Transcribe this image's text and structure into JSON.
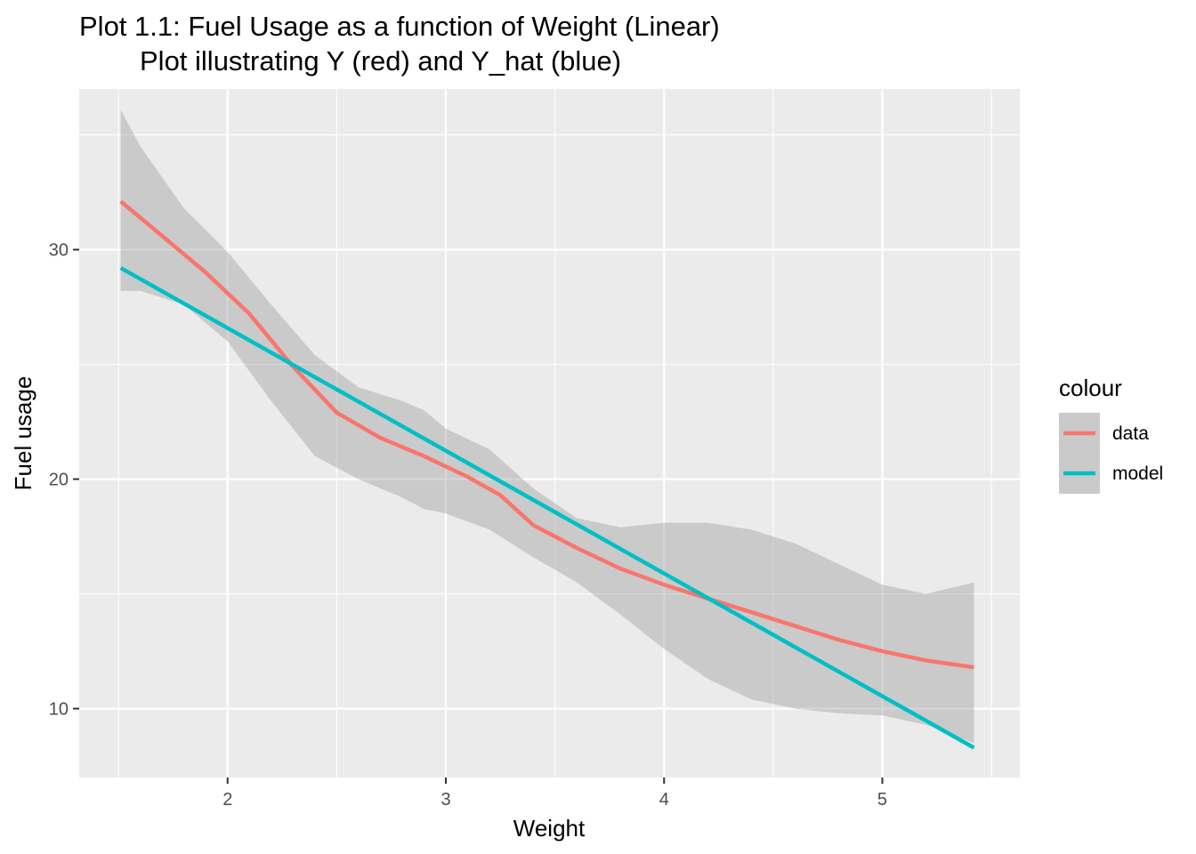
{
  "chart_data": {
    "type": "line",
    "title": "Plot 1.1: Fuel Usage as a function of Weight (Linear)",
    "subtitle": "Plot illustrating Y (red) and Y_hat (blue)",
    "xlabel": "Weight",
    "ylabel": "Fuel usage",
    "xlim": [
      1.32,
      5.63
    ],
    "ylim": [
      7.0,
      37.0
    ],
    "x_ticks": [
      2,
      3,
      4,
      5
    ],
    "y_ticks": [
      10,
      20,
      30
    ],
    "grid": true,
    "legend": {
      "title": "colour",
      "placement": "right",
      "entries": [
        {
          "label": "data",
          "color": "#F8766D"
        },
        {
          "label": "model",
          "color": "#00BFC4"
        }
      ]
    },
    "series": [
      {
        "name": "data",
        "color": "#F8766D",
        "x": [
          1.51,
          1.7,
          1.9,
          2.1,
          2.3,
          2.5,
          2.7,
          2.9,
          3.1,
          3.25,
          3.4,
          3.6,
          3.8,
          4.0,
          4.2,
          4.4,
          4.6,
          4.8,
          5.0,
          5.2,
          5.42
        ],
        "y": [
          32.1,
          30.6,
          29.0,
          27.2,
          24.9,
          22.9,
          21.8,
          21.0,
          20.1,
          19.3,
          18.0,
          17.0,
          16.1,
          15.4,
          14.8,
          14.2,
          13.6,
          13.0,
          12.5,
          12.1,
          11.8
        ]
      },
      {
        "name": "model",
        "color": "#00BFC4",
        "x": [
          1.51,
          5.42
        ],
        "y": [
          29.2,
          8.3
        ]
      }
    ],
    "confidence_band": {
      "color": "#999999",
      "x": [
        1.51,
        1.6,
        1.8,
        2.0,
        2.2,
        2.4,
        2.6,
        2.8,
        2.9,
        3.0,
        3.2,
        3.4,
        3.6,
        3.8,
        4.0,
        4.2,
        4.4,
        4.6,
        4.8,
        5.0,
        5.2,
        5.42
      ],
      "upper": [
        36.1,
        34.5,
        31.8,
        29.9,
        27.6,
        25.4,
        24.0,
        23.4,
        23.0,
        22.2,
        21.3,
        19.6,
        18.3,
        17.9,
        18.1,
        18.1,
        17.8,
        17.2,
        16.3,
        15.4,
        15.0,
        15.5
      ],
      "lower": [
        28.2,
        28.2,
        27.6,
        26.0,
        23.4,
        21.0,
        20.0,
        19.2,
        18.7,
        18.5,
        17.8,
        16.6,
        15.5,
        14.1,
        12.6,
        11.3,
        10.4,
        10.0,
        9.8,
        9.7,
        9.3,
        8.5
      ]
    }
  }
}
